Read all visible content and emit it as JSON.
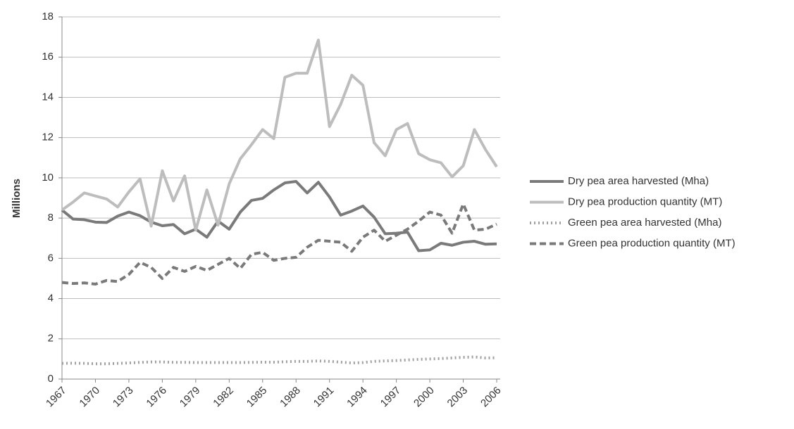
{
  "chart_data": {
    "type": "line",
    "y_label": "Millions",
    "categories": [
      "1967",
      null,
      null,
      "1970",
      null,
      null,
      "1973",
      null,
      null,
      "1976",
      null,
      null,
      "1979",
      null,
      null,
      "1982",
      null,
      null,
      "1985",
      null,
      null,
      "1988",
      null,
      null,
      "1991",
      null,
      null,
      "1994",
      null,
      null,
      "1997",
      null,
      null,
      "2000",
      null,
      null,
      "2003",
      null,
      null,
      "2006"
    ],
    "ylim": [
      0,
      18
    ],
    "yticks": [
      0,
      2,
      4,
      6,
      8,
      10,
      12,
      14,
      16,
      18
    ],
    "grid": true,
    "legend": "right",
    "series": [
      {
        "name": "Dry pea area harvested (Mha)",
        "color": "#7a7a7a",
        "dash": "solid",
        "values": [
          8.4,
          7.95,
          7.92,
          7.8,
          7.78,
          8.1,
          8.3,
          8.12,
          7.8,
          7.62,
          7.68,
          7.22,
          7.45,
          7.05,
          7.85,
          7.45,
          8.3,
          8.88,
          8.98,
          9.4,
          9.75,
          9.82,
          9.25,
          9.78,
          9.05,
          8.15,
          8.35,
          8.6,
          8.05,
          7.22,
          7.25,
          7.3,
          6.38,
          6.42,
          6.75,
          6.65,
          6.8,
          6.85,
          6.7,
          6.72
        ]
      },
      {
        "name": "Dry pea production quantity (MT)",
        "color": "#bdbdbd",
        "dash": "solid",
        "values": [
          8.4,
          8.8,
          9.25,
          9.1,
          8.95,
          8.55,
          9.3,
          9.95,
          7.6,
          10.35,
          8.85,
          10.1,
          7.4,
          9.4,
          7.65,
          9.7,
          10.95,
          11.65,
          12.4,
          11.95,
          15.0,
          15.2,
          15.2,
          16.85,
          12.55,
          13.65,
          15.1,
          14.6,
          11.75,
          11.1,
          12.4,
          12.7,
          11.2,
          10.9,
          10.75,
          10.05,
          10.6,
          12.4,
          11.4,
          10.55
        ]
      },
      {
        "name": "Green pea area harvested (Mha)",
        "color": "#a0a0a0",
        "dash": "dotted",
        "values": [
          0.78,
          0.79,
          0.78,
          0.76,
          0.76,
          0.78,
          0.8,
          0.83,
          0.85,
          0.85,
          0.83,
          0.83,
          0.82,
          0.82,
          0.82,
          0.82,
          0.82,
          0.83,
          0.84,
          0.84,
          0.86,
          0.88,
          0.88,
          0.9,
          0.88,
          0.84,
          0.8,
          0.82,
          0.88,
          0.9,
          0.92,
          0.95,
          0.98,
          1.0,
          1.02,
          1.05,
          1.08,
          1.1,
          1.05,
          1.06
        ]
      },
      {
        "name": "Green pea production quantity (MT)",
        "color": "#7a7a7a",
        "dash": "dashed",
        "values": [
          4.8,
          4.75,
          4.78,
          4.72,
          4.9,
          4.85,
          5.2,
          5.8,
          5.55,
          5.0,
          5.55,
          5.35,
          5.6,
          5.4,
          5.7,
          6.0,
          5.5,
          6.2,
          6.3,
          5.9,
          6.0,
          6.05,
          6.55,
          6.9,
          6.85,
          6.8,
          6.35,
          7.05,
          7.4,
          6.85,
          7.15,
          7.45,
          7.85,
          8.3,
          8.15,
          7.25,
          8.7,
          7.4,
          7.45,
          7.7
        ]
      }
    ]
  }
}
